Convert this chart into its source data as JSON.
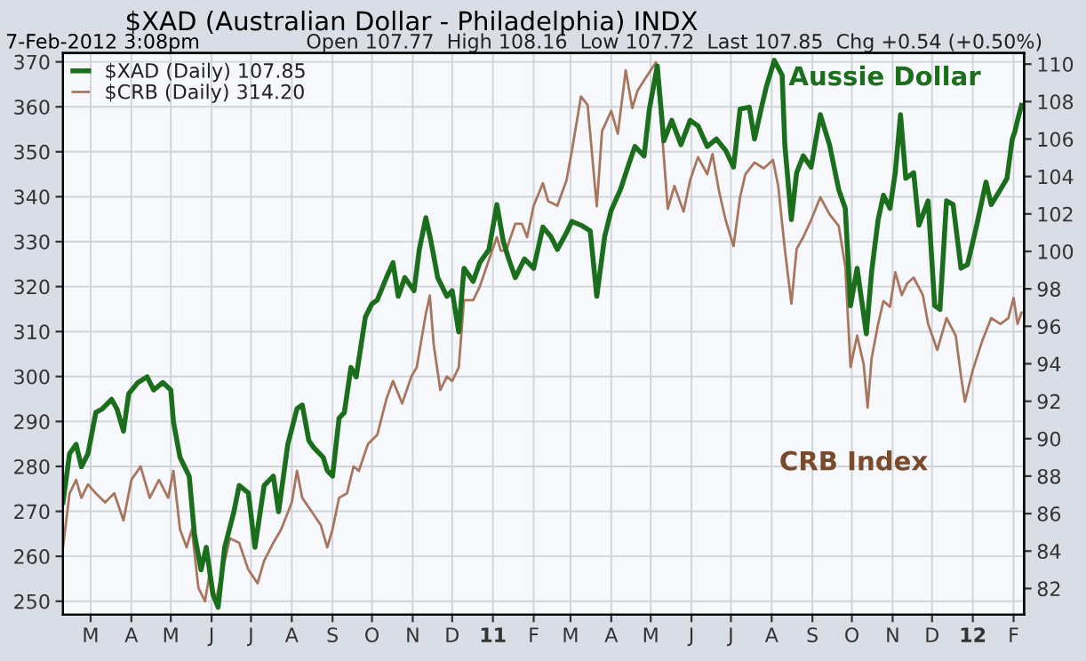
{
  "chart_data": {
    "type": "line",
    "title": "$XAD (Australian Dollar - Philadelphia) INDX",
    "subtitle": "7-Feb-2012 3:08pm",
    "annotations": [
      "Open 107.77  High 108.16  Low 107.72  Last 107.85  Chg +0.54 (+0.50%)",
      "Aussie Dollar",
      "CRB Index"
    ],
    "xlim": [
      "2010-02-08",
      "2012-02-09"
    ],
    "xticks": [
      {
        "value": "2010-03-01",
        "label": "M"
      },
      {
        "value": "2010-04-01",
        "label": "A"
      },
      {
        "value": "2010-05-01",
        "label": "M"
      },
      {
        "value": "2010-06-01",
        "label": "J"
      },
      {
        "value": "2010-07-01",
        "label": "J"
      },
      {
        "value": "2010-08-01",
        "label": "A"
      },
      {
        "value": "2010-09-01",
        "label": "S"
      },
      {
        "value": "2010-10-01",
        "label": "O"
      },
      {
        "value": "2010-11-01",
        "label": "N"
      },
      {
        "value": "2010-12-01",
        "label": "D"
      },
      {
        "value": "2011-01-01",
        "label": "11"
      },
      {
        "value": "2011-02-01",
        "label": "F"
      },
      {
        "value": "2011-03-01",
        "label": "M"
      },
      {
        "value": "2011-04-01",
        "label": "A"
      },
      {
        "value": "2011-05-01",
        "label": "M"
      },
      {
        "value": "2011-06-01",
        "label": "J"
      },
      {
        "value": "2011-07-01",
        "label": "J"
      },
      {
        "value": "2011-08-01",
        "label": "A"
      },
      {
        "value": "2011-09-01",
        "label": "S"
      },
      {
        "value": "2011-10-01",
        "label": "O"
      },
      {
        "value": "2011-11-01",
        "label": "N"
      },
      {
        "value": "2011-12-01",
        "label": "D"
      },
      {
        "value": "2012-01-01",
        "label": "12"
      },
      {
        "value": "2012-02-01",
        "label": "F"
      }
    ],
    "ylim": [
      247,
      372
    ],
    "yticks": [
      250,
      260,
      270,
      280,
      290,
      300,
      310,
      320,
      330,
      340,
      350,
      360,
      370
    ],
    "y2lim": [
      80.6,
      110.6
    ],
    "y2ticks": [
      82,
      84,
      86,
      88,
      90,
      92,
      94,
      96,
      98,
      100,
      102,
      104,
      106,
      108,
      110
    ],
    "grid": true,
    "legend": "top left",
    "series": [
      {
        "name": "$XAD (Daily) 107.85",
        "color": "#1b6e1b",
        "axis": "y2",
        "x": [
          "2010-02-08",
          "2010-02-13",
          "2010-02-18",
          "2010-02-22",
          "2010-02-27",
          "2010-03-05",
          "2010-03-10",
          "2010-03-17",
          "2010-03-21",
          "2010-03-26",
          "2010-03-30",
          "2010-04-06",
          "2010-04-13",
          "2010-04-18",
          "2010-04-25",
          "2010-05-01",
          "2010-05-03",
          "2010-05-08",
          "2010-05-15",
          "2010-05-19",
          "2010-05-24",
          "2010-05-28",
          "2010-06-02",
          "2010-06-06",
          "2010-06-11",
          "2010-06-18",
          "2010-06-22",
          "2010-06-29",
          "2010-07-04",
          "2010-07-11",
          "2010-07-18",
          "2010-07-22",
          "2010-07-29",
          "2010-08-05",
          "2010-08-09",
          "2010-08-14",
          "2010-08-18",
          "2010-08-25",
          "2010-08-28",
          "2010-09-01",
          "2010-09-06",
          "2010-09-10",
          "2010-09-15",
          "2010-09-19",
          "2010-09-26",
          "2010-10-01",
          "2010-10-05",
          "2010-10-12",
          "2010-10-17",
          "2010-10-21",
          "2010-10-26",
          "2010-11-02",
          "2010-11-06",
          "2010-11-11",
          "2010-11-15",
          "2010-11-20",
          "2010-11-27",
          "2010-12-01",
          "2010-12-06",
          "2010-12-10",
          "2010-12-17",
          "2010-12-22",
          "2010-12-29",
          "2011-01-04",
          "2011-01-09",
          "2011-01-13",
          "2011-01-18",
          "2011-01-25",
          "2011-02-01",
          "2011-02-08",
          "2011-02-14",
          "2011-02-19",
          "2011-02-26",
          "2011-03-02",
          "2011-03-09",
          "2011-03-16",
          "2011-03-21",
          "2011-03-27",
          "2011-04-01",
          "2011-04-08",
          "2011-04-15",
          "2011-04-19",
          "2011-04-26",
          "2011-04-30",
          "2011-05-06",
          "2011-05-11",
          "2011-05-17",
          "2011-05-24",
          "2011-05-31",
          "2011-06-06",
          "2011-06-13",
          "2011-06-20",
          "2011-06-27",
          "2011-07-03",
          "2011-07-08",
          "2011-07-15",
          "2011-07-19",
          "2011-07-24",
          "2011-07-28",
          "2011-08-03",
          "2011-08-09",
          "2011-08-11",
          "2011-08-16",
          "2011-08-20",
          "2011-08-25",
          "2011-08-31",
          "2011-09-07",
          "2011-09-14",
          "2011-09-21",
          "2011-09-26",
          "2011-09-30",
          "2011-10-05",
          "2011-10-12",
          "2011-10-16",
          "2011-10-21",
          "2011-10-25",
          "2011-10-30",
          "2011-11-03",
          "2011-11-07",
          "2011-11-11",
          "2011-11-17",
          "2011-11-21",
          "2011-11-28",
          "2011-12-03",
          "2011-12-07",
          "2011-12-12",
          "2011-12-17",
          "2011-12-23",
          "2011-12-28",
          "2012-01-04",
          "2012-01-11",
          "2012-01-15",
          "2012-01-22",
          "2012-01-27",
          "2012-01-31",
          "2012-02-02",
          "2012-02-04",
          "2012-02-07"
        ],
        "values": [
          86.6,
          89.2,
          89.7,
          88.5,
          89.2,
          91.4,
          91.6,
          92.1,
          91.6,
          90.4,
          92.4,
          93.0,
          93.3,
          92.6,
          93.0,
          92.6,
          90.9,
          89.0,
          88.0,
          84.9,
          83.0,
          84.2,
          81.7,
          81.0,
          84.2,
          86.1,
          87.5,
          87.1,
          84.2,
          87.5,
          88.0,
          86.1,
          89.7,
          91.6,
          91.8,
          89.9,
          89.5,
          89.0,
          88.3,
          88.0,
          91.1,
          91.4,
          93.8,
          93.3,
          96.5,
          97.2,
          97.4,
          98.6,
          99.4,
          97.6,
          98.6,
          97.9,
          100.1,
          101.8,
          100.5,
          98.6,
          97.6,
          97.9,
          95.7,
          99.1,
          98.4,
          99.4,
          100.1,
          102.5,
          100.5,
          99.6,
          98.6,
          99.6,
          99.1,
          101.3,
          100.8,
          100.1,
          101.0,
          101.6,
          101.4,
          101.1,
          97.6,
          100.8,
          102.2,
          103.3,
          104.8,
          105.6,
          105.1,
          107.6,
          109.9,
          105.9,
          107.0,
          105.7,
          107.0,
          106.7,
          105.6,
          106.0,
          105.4,
          104.5,
          107.6,
          107.7,
          106.0,
          107.6,
          108.8,
          110.2,
          109.4,
          105.7,
          101.7,
          104.2,
          105.1,
          104.5,
          107.3,
          105.7,
          103.3,
          102.3,
          97.1,
          99.1,
          95.6,
          98.9,
          101.7,
          103.0,
          102.3,
          104.2,
          107.3,
          103.9,
          104.2,
          101.4,
          102.7,
          97.1,
          96.9,
          102.7,
          102.5,
          99.1,
          99.3,
          101.4,
          103.7,
          102.5,
          103.3,
          103.9,
          106.0,
          106.4,
          107.0,
          107.8
        ]
      },
      {
        "name": "$CRB (Daily) 314.20",
        "color": "#a8765e",
        "x": [
          "2010-02-08",
          "2010-02-13",
          "2010-02-18",
          "2010-02-22",
          "2010-02-27",
          "2010-03-05",
          "2010-03-12",
          "2010-03-19",
          "2010-03-26",
          "2010-04-01",
          "2010-04-08",
          "2010-04-15",
          "2010-04-22",
          "2010-04-29",
          "2010-05-03",
          "2010-05-08",
          "2010-05-13",
          "2010-05-17",
          "2010-05-22",
          "2010-05-27",
          "2010-05-31",
          "2010-06-04",
          "2010-06-11",
          "2010-06-15",
          "2010-06-22",
          "2010-06-29",
          "2010-07-06",
          "2010-07-11",
          "2010-07-18",
          "2010-07-24",
          "2010-08-01",
          "2010-08-05",
          "2010-08-09",
          "2010-08-16",
          "2010-08-23",
          "2010-08-28",
          "2010-09-01",
          "2010-09-06",
          "2010-09-12",
          "2010-09-17",
          "2010-09-21",
          "2010-09-28",
          "2010-10-05",
          "2010-10-12",
          "2010-10-17",
          "2010-10-24",
          "2010-10-31",
          "2010-11-04",
          "2010-11-11",
          "2010-11-14",
          "2010-11-17",
          "2010-11-22",
          "2010-11-27",
          "2010-12-01",
          "2010-12-06",
          "2010-12-10",
          "2010-12-17",
          "2010-12-22",
          "2010-12-29",
          "2011-01-04",
          "2011-01-07",
          "2011-01-11",
          "2011-01-18",
          "2011-01-23",
          "2011-01-27",
          "2011-02-01",
          "2011-02-08",
          "2011-02-12",
          "2011-02-19",
          "2011-02-26",
          "2011-03-02",
          "2011-03-09",
          "2011-03-14",
          "2011-03-21",
          "2011-03-25",
          "2011-04-01",
          "2011-04-06",
          "2011-04-12",
          "2011-04-17",
          "2011-04-21",
          "2011-04-28",
          "2011-05-05",
          "2011-05-10",
          "2011-05-14",
          "2011-05-19",
          "2011-05-26",
          "2011-05-31",
          "2011-06-06",
          "2011-06-13",
          "2011-06-17",
          "2011-06-22",
          "2011-06-27",
          "2011-07-03",
          "2011-07-08",
          "2011-07-12",
          "2011-07-19",
          "2011-07-26",
          "2011-08-02",
          "2011-08-06",
          "2011-08-11",
          "2011-08-16",
          "2011-08-20",
          "2011-08-25",
          "2011-08-31",
          "2011-09-07",
          "2011-09-14",
          "2011-09-21",
          "2011-09-26",
          "2011-09-30",
          "2011-10-05",
          "2011-10-10",
          "2011-10-13",
          "2011-10-16",
          "2011-10-21",
          "2011-10-25",
          "2011-10-30",
          "2011-11-03",
          "2011-11-08",
          "2011-11-12",
          "2011-11-17",
          "2011-11-24",
          "2011-11-28",
          "2011-12-05",
          "2011-12-12",
          "2011-12-19",
          "2011-12-23",
          "2011-12-26",
          "2012-01-01",
          "2012-01-08",
          "2012-01-15",
          "2012-01-22",
          "2012-01-28",
          "2012-02-01",
          "2012-02-04",
          "2012-02-07"
        ],
        "values": [
          262,
          274,
          277,
          273,
          276,
          274,
          272,
          274,
          268,
          277,
          280,
          273,
          277,
          273,
          279,
          266,
          262,
          266,
          253,
          250,
          257,
          250,
          259,
          264,
          263,
          257,
          254,
          259,
          263,
          266,
          272,
          279,
          273,
          270,
          267,
          262,
          266,
          273,
          274,
          280,
          279,
          285,
          287,
          295,
          299,
          294,
          300,
          302,
          314,
          318,
          307,
          297,
          300,
          299,
          302,
          317,
          317,
          320,
          326,
          331,
          328,
          328,
          334,
          334,
          331,
          338,
          343,
          339,
          338,
          343.7,
          350.1,
          362.3,
          360.4,
          337.9,
          354.6,
          359.1,
          354.0,
          368.1,
          359.7,
          363.6,
          366.8,
          369.9,
          352.7,
          337.3,
          342.4,
          336.7,
          343.7,
          348.8,
          345.0,
          349.5,
          341.2,
          334.8,
          329.0,
          339.9,
          345.0,
          347.6,
          346.3,
          348.2,
          342.4,
          328.4,
          316.2,
          328.4,
          331.0,
          334.8,
          339.9,
          336.1,
          333.5,
          324.5,
          302.1,
          309.1,
          302.7,
          293.1,
          304.0,
          311.7,
          316.8,
          315.5,
          323.2,
          318.1,
          320.7,
          322.0,
          318.1,
          311.7,
          305.9,
          313.0,
          309.1,
          300.1,
          294.4,
          301.4,
          307.8,
          313.0,
          311.7,
          313.0,
          317.5,
          311.7,
          314.2
        ]
      }
    ]
  }
}
